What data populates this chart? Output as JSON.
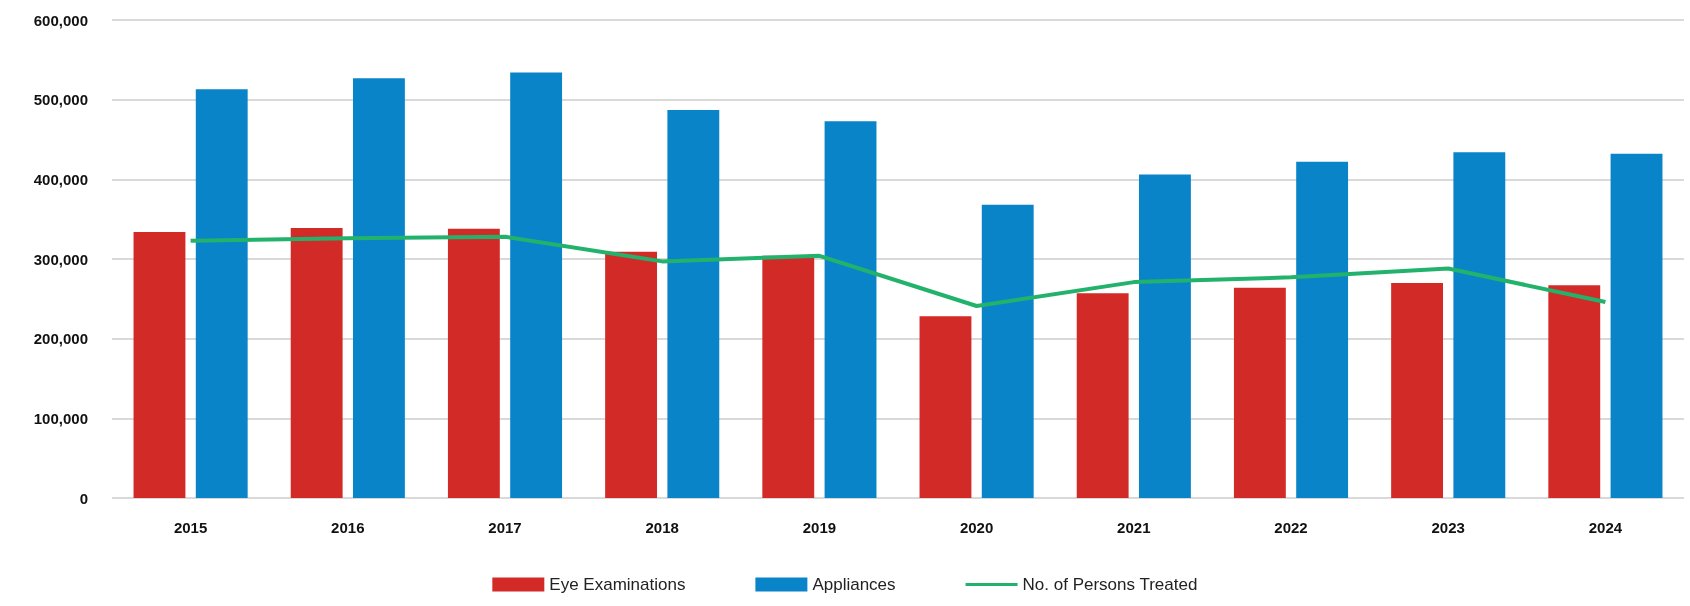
{
  "chart_data": {
    "type": "bar",
    "categories": [
      "2015",
      "2016",
      "2017",
      "2018",
      "2019",
      "2020",
      "2021",
      "2022",
      "2023",
      "2024"
    ],
    "series": [
      {
        "name": "Eye Examinations",
        "color": "#d22b27",
        "values": [
          334000,
          339000,
          338000,
          309000,
          304000,
          228000,
          257000,
          264000,
          270000,
          267000
        ]
      },
      {
        "name": "Appliances",
        "color": "#0a84c8",
        "values": [
          513000,
          527000,
          534000,
          487000,
          473000,
          368000,
          406000,
          422000,
          434000,
          432000
        ]
      },
      {
        "name": "No. of Persons Treated",
        "type": "line",
        "color": "#22b26b",
        "values": [
          323000,
          326000,
          328000,
          297000,
          304000,
          241000,
          271000,
          277000,
          288000,
          246000
        ]
      }
    ],
    "ylim": [
      0,
      600000
    ],
    "yticks": [
      0,
      {
        "value": 100000,
        "label": "100,000"
      },
      {
        "value": 200000,
        "label": "200,000"
      },
      {
        "value": 300000,
        "label": "300,000"
      },
      {
        "value": 400000,
        "label": "400,000"
      },
      {
        "value": 500000,
        "label": "500,000"
      },
      {
        "value": 600000,
        "label": "600,000"
      }
    ],
    "grid": "y",
    "legend": "bottom",
    "marker": "none",
    "line_style": "solid"
  }
}
